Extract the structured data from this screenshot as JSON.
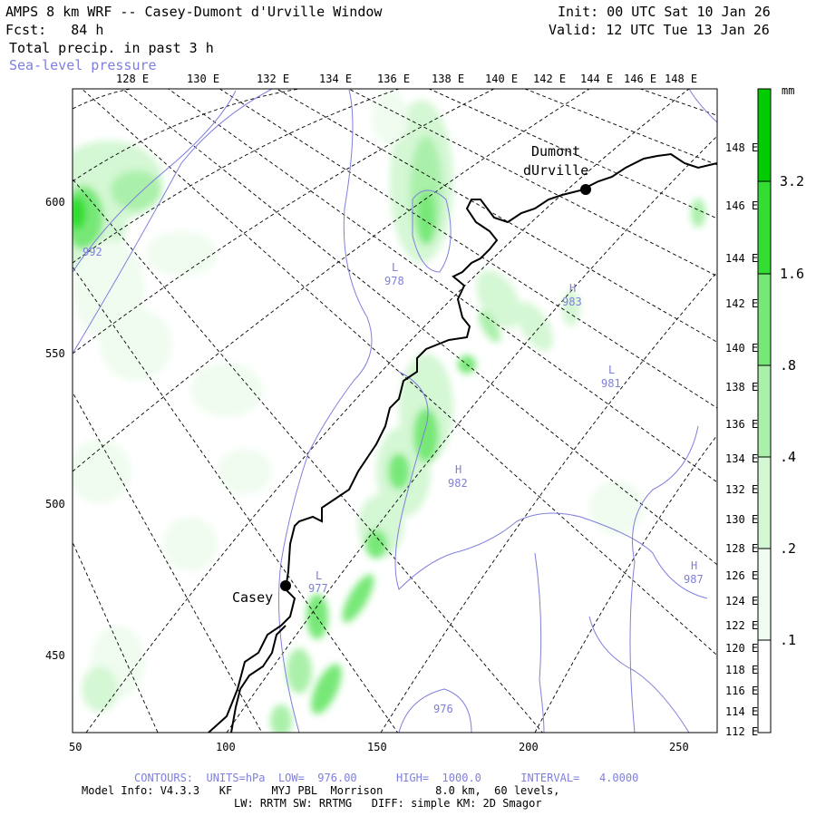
{
  "header": {
    "title": "AMPS 8 km WRF -- Casey-Dumont d'Urville Window",
    "fcst": "Fcst:   84 h",
    "field": "Total precip. in past 3 h",
    "overlay": "Sea-level pressure",
    "init": "Init: 00 UTC Sat 10 Jan 26",
    "valid": "Valid: 12 UTC Tue 13 Jan 26"
  },
  "top_lon_labels": [
    "128 E",
    "130 E",
    "132 E",
    "134 E",
    "136 E",
    "138 E",
    "140 E",
    "142 E",
    "144 E",
    "146 E",
    "148 E"
  ],
  "right_lon_labels": [
    "148 E",
    "146 E",
    "144 E",
    "142 E",
    "140 E",
    "138 E",
    "136 E",
    "134 E",
    "132 E",
    "130 E",
    "128 E",
    "126 E",
    "124 E",
    "122 E",
    "120 E",
    "118 E",
    "116 E",
    "114 E",
    "112 E"
  ],
  "x_ticks": [
    "50",
    "100",
    "150",
    "200",
    "250"
  ],
  "y_ticks": [
    "600",
    "550",
    "500",
    "450"
  ],
  "stations": [
    {
      "name": "Dumont dUrville",
      "line1": "Dumont",
      "line2": "dUrville"
    },
    {
      "name": "Casey",
      "line1": "Casey"
    }
  ],
  "pressure_labels": [
    {
      "text": "L",
      "value": "978"
    },
    {
      "text": "H",
      "value": "983"
    },
    {
      "text": "L",
      "value": "981"
    },
    {
      "text": "H",
      "value": "982"
    },
    {
      "text": "L",
      "value": "977"
    },
    {
      "text": "H",
      "value": "987"
    },
    {
      "text": "",
      "value": "992"
    },
    {
      "text": "",
      "value": "976"
    }
  ],
  "colorbar": {
    "unit": "mm",
    "labels": [
      "3.2",
      "1.6",
      ".8",
      ".4",
      ".2",
      ".1"
    ],
    "colors": [
      "#00cc00",
      "#33dd33",
      "#77e877",
      "#aaf0aa",
      "#d4f7d4",
      "#f0fcf0",
      "#ffffff"
    ]
  },
  "footer": {
    "contours": "CONTOURS:  UNITS=hPa  LOW=  976.00      HIGH=  1000.0      INTERVAL=   4.0000",
    "model_info": "Model Info: V4.3.3   KF      MYJ PBL  Morrison        8.0 km,  60 levels,",
    "physics": "LW: RRTM SW: RRTMG   DIFF: simple KM: 2D Smagor"
  },
  "colors": {
    "slp": "#7f7fdc",
    "coast": "#000000",
    "grid": "#000000"
  }
}
